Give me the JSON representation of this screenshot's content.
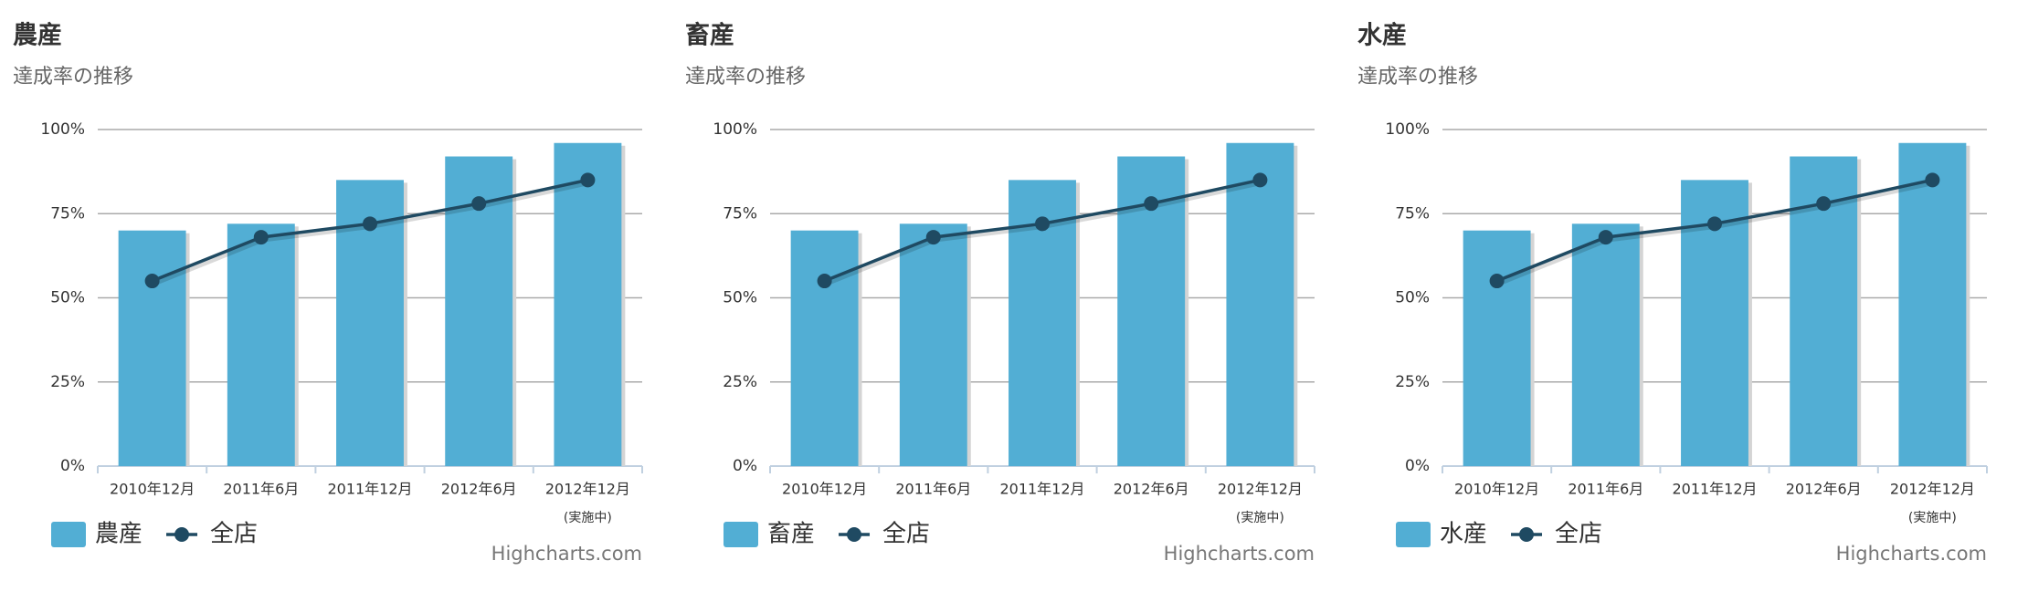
{
  "chart_data": [
    {
      "type": "bar",
      "title": "農産",
      "subtitle": "達成率の推移",
      "categories": [
        "2010年12月",
        "2011年6月",
        "2011年12月",
        "2012年6月",
        "2012年12月"
      ],
      "annotation": "(実施中)",
      "series": [
        {
          "name": "農産",
          "type": "bar",
          "color": "#52aed4",
          "values": [
            70,
            72,
            85,
            92,
            96
          ]
        },
        {
          "name": "全店",
          "type": "line",
          "color": "#1f4a62",
          "values": [
            55,
            68,
            72,
            78,
            85
          ]
        }
      ],
      "ylim": [
        0,
        100
      ],
      "yticks": [
        {
          "value": 0,
          "label": "0%"
        },
        {
          "value": 25,
          "label": "25%"
        },
        {
          "value": 50,
          "label": "50%"
        },
        {
          "value": 75,
          "label": "75%"
        },
        {
          "value": 100,
          "label": "100%"
        }
      ],
      "grid": true,
      "credits": "Highcharts.com"
    },
    {
      "type": "bar",
      "title": "畜産",
      "subtitle": "達成率の推移",
      "categories": [
        "2010年12月",
        "2011年6月",
        "2011年12月",
        "2012年6月",
        "2012年12月"
      ],
      "annotation": "(実施中)",
      "series": [
        {
          "name": "畜産",
          "type": "bar",
          "color": "#52aed4",
          "values": [
            70,
            72,
            85,
            92,
            96
          ]
        },
        {
          "name": "全店",
          "type": "line",
          "color": "#1f4a62",
          "values": [
            55,
            68,
            72,
            78,
            85
          ]
        }
      ],
      "ylim": [
        0,
        100
      ],
      "yticks": [
        {
          "value": 0,
          "label": "0%"
        },
        {
          "value": 25,
          "label": "25%"
        },
        {
          "value": 50,
          "label": "50%"
        },
        {
          "value": 75,
          "label": "75%"
        },
        {
          "value": 100,
          "label": "100%"
        }
      ],
      "grid": true,
      "credits": "Highcharts.com"
    },
    {
      "type": "bar",
      "title": "水産",
      "subtitle": "達成率の推移",
      "categories": [
        "2010年12月",
        "2011年6月",
        "2011年12月",
        "2012年6月",
        "2012年12月"
      ],
      "annotation": "(実施中)",
      "series": [
        {
          "name": "水産",
          "type": "bar",
          "color": "#52aed4",
          "values": [
            70,
            72,
            85,
            92,
            96
          ]
        },
        {
          "name": "全店",
          "type": "line",
          "color": "#1f4a62",
          "values": [
            55,
            68,
            72,
            78,
            85
          ]
        }
      ],
      "ylim": [
        0,
        100
      ],
      "yticks": [
        {
          "value": 0,
          "label": "0%"
        },
        {
          "value": 25,
          "label": "25%"
        },
        {
          "value": 50,
          "label": "50%"
        },
        {
          "value": 75,
          "label": "75%"
        },
        {
          "value": 100,
          "label": "100%"
        }
      ],
      "grid": true,
      "credits": "Highcharts.com"
    }
  ]
}
